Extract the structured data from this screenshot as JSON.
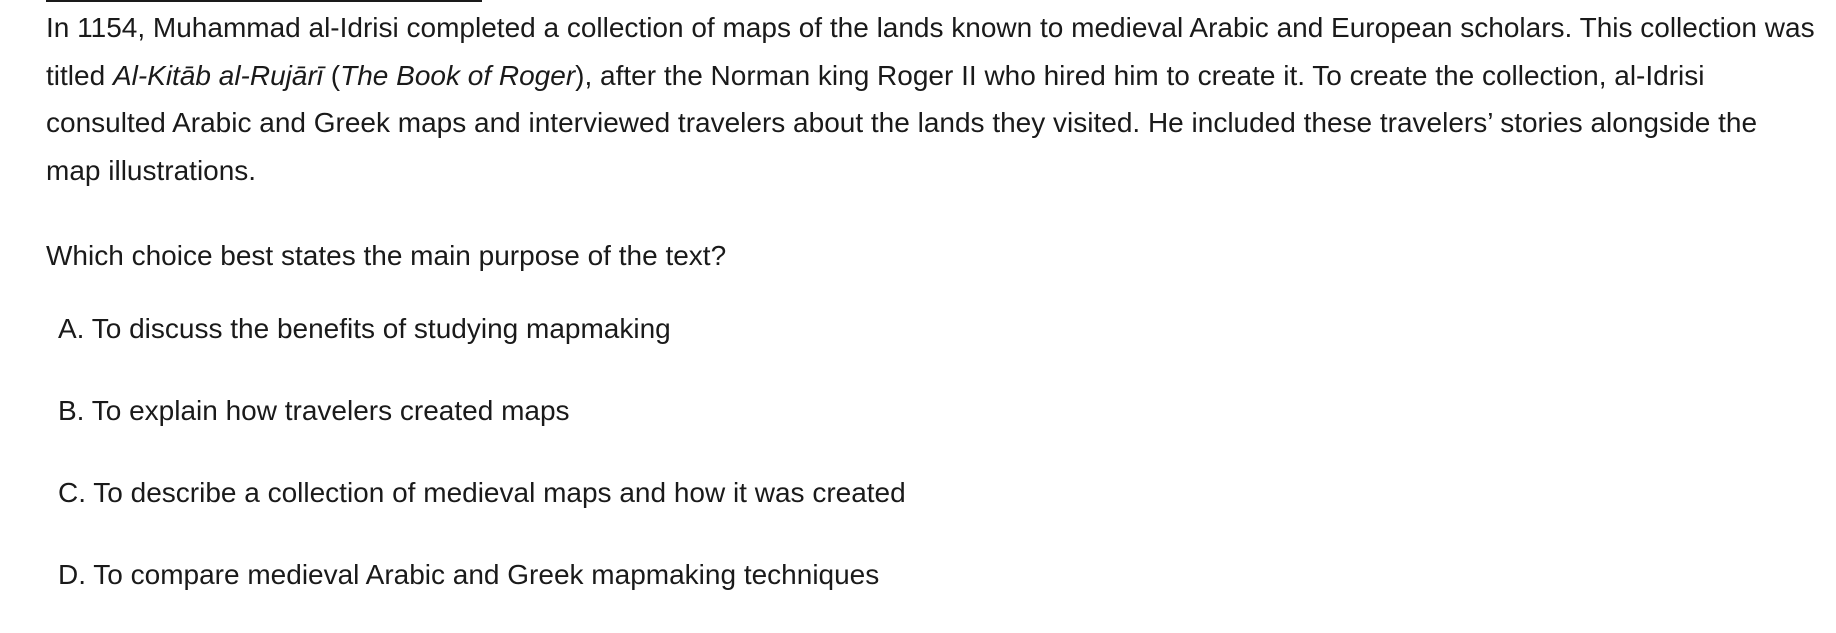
{
  "passage": {
    "part1": "In 1154, Muhammad al-Idrisi completed a collection of maps of the lands known to medieval Arabic and European scholars. This collection was titled ",
    "title_italic": "Al-Kitāb al-Rujārī",
    "part2": " (",
    "title_english_italic": "The Book of Roger",
    "part3": "), after the Norman king Roger II who hired him to create it. To create the collection, al-Idrisi consulted Arabic and Greek maps and interviewed travelers about the lands they visited. He included these travelers’ stories alongside the map illustrations."
  },
  "question": {
    "prompt": "Which choice best states the main purpose of the text?"
  },
  "choices": [
    {
      "letter": "A.",
      "text": "To discuss the benefits of studying mapmaking"
    },
    {
      "letter": "B.",
      "text": "To explain how travelers created maps"
    },
    {
      "letter": "C.",
      "text": "To describe a collection of medieval maps and how it was created"
    },
    {
      "letter": "D.",
      "text": "To compare medieval Arabic and Greek mapmaking techniques"
    }
  ]
}
